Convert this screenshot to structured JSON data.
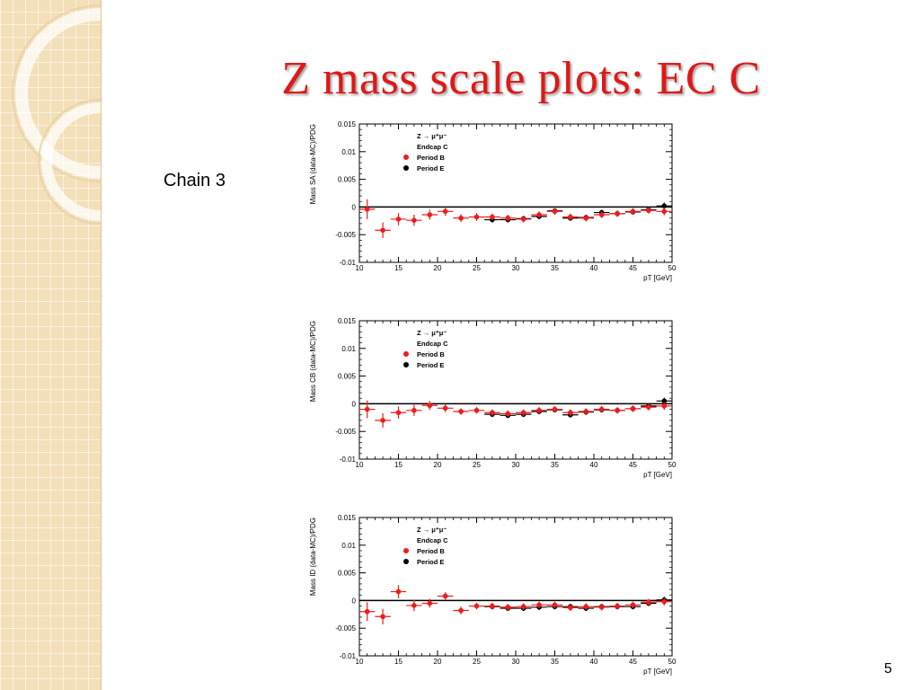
{
  "slide": {
    "title": "Z mass scale plots: EC C",
    "chain_label": "Chain 3",
    "page_number": "5"
  },
  "colors": {
    "title": "#e01818",
    "period_b": "#ee1c1c",
    "period_e": "#000000",
    "sidebar": "#f3dfb8"
  },
  "chart_data": [
    {
      "type": "scatter",
      "ylabel": "Mass SA (data-MC)/PDG",
      "xlabel": "pT [GeV]",
      "xlim": [
        10,
        50
      ],
      "ylim": [
        -0.01,
        0.015
      ],
      "xticks": [
        "10",
        "15",
        "20",
        "25",
        "30",
        "35",
        "40",
        "45",
        "50"
      ],
      "yticks": [
        "0.015",
        "0.01",
        "0.005",
        "0",
        "-0.005",
        "-0.01"
      ],
      "legend": {
        "process": "Z → μ⁺μ⁻",
        "region": "Endcap C",
        "position": "top-left"
      },
      "series": [
        {
          "name": "Period B",
          "x": [
            11,
            13,
            15,
            17,
            19,
            21,
            23,
            25,
            27,
            29,
            31,
            33,
            35,
            37,
            39,
            41,
            43,
            45,
            47,
            49
          ],
          "y": [
            -0.0004,
            -0.0042,
            -0.0022,
            -0.0024,
            -0.0014,
            -0.0008,
            -0.002,
            -0.0018,
            -0.0018,
            -0.002,
            -0.0022,
            -0.0014,
            -0.0008,
            -0.0018,
            -0.002,
            -0.0014,
            -0.0012,
            -0.0008,
            -0.0006,
            -0.0008
          ],
          "yerr": [
            0.0018,
            0.0014,
            0.0011,
            0.001,
            0.0009,
            0.0008,
            0.0007,
            0.0007,
            0.0006,
            0.0006,
            0.0006,
            0.0006,
            0.0006,
            0.0006,
            0.0006,
            0.0006,
            0.0006,
            0.0006,
            0.0006,
            0.0007
          ]
        },
        {
          "name": "Period E",
          "x": [
            27,
            29,
            31,
            33,
            35,
            37,
            39,
            41,
            43,
            45,
            47,
            49
          ],
          "y": [
            -0.0023,
            -0.0023,
            -0.0021,
            -0.0017,
            -0.0007,
            -0.002,
            -0.0019,
            -0.001,
            -0.0012,
            -0.0009,
            -0.0005,
            0.0002
          ],
          "yerr": [
            0.0005,
            0.0005,
            0.0005,
            0.0005,
            0.0005,
            0.0005,
            0.0005,
            0.0005,
            0.0005,
            0.0005,
            0.0005,
            0.0006
          ]
        }
      ]
    },
    {
      "type": "scatter",
      "ylabel": "Mass CB (data-MC)/PDG",
      "xlabel": "pT [GeV]",
      "xlim": [
        10,
        50
      ],
      "ylim": [
        -0.01,
        0.015
      ],
      "xticks": [
        "10",
        "15",
        "20",
        "25",
        "30",
        "35",
        "40",
        "45",
        "50"
      ],
      "yticks": [
        "0.015",
        "0.01",
        "0.005",
        "0",
        "-0.005",
        "-0.01"
      ],
      "legend": {
        "process": "Z → μ⁺μ⁻",
        "region": "Endcap C",
        "position": "top-left"
      },
      "series": [
        {
          "name": "Period B",
          "x": [
            11,
            13,
            15,
            17,
            19,
            21,
            23,
            25,
            27,
            29,
            31,
            33,
            35,
            37,
            39,
            41,
            43,
            45,
            47,
            49
          ],
          "y": [
            -0.001,
            -0.003,
            -0.0016,
            -0.0012,
            -0.0003,
            -0.0008,
            -0.0014,
            -0.0012,
            -0.0016,
            -0.0018,
            -0.0016,
            -0.0012,
            -0.001,
            -0.0016,
            -0.0014,
            -0.001,
            -0.0012,
            -0.0009,
            -0.0006,
            -0.0004
          ],
          "yerr": [
            0.0016,
            0.0013,
            0.0011,
            0.001,
            0.0008,
            0.0007,
            0.0006,
            0.0006,
            0.0006,
            0.0006,
            0.0006,
            0.0006,
            0.0006,
            0.0006,
            0.0006,
            0.0006,
            0.0006,
            0.0006,
            0.0006,
            0.0007
          ]
        },
        {
          "name": "Period E",
          "x": [
            27,
            29,
            31,
            33,
            35,
            37,
            39,
            41,
            43,
            45,
            47,
            49
          ],
          "y": [
            -0.0019,
            -0.0021,
            -0.0019,
            -0.0014,
            -0.0011,
            -0.002,
            -0.0015,
            -0.0011,
            -0.0012,
            -0.0009,
            -0.0004,
            0.0005
          ],
          "yerr": [
            0.0005,
            0.0005,
            0.0005,
            0.0005,
            0.0005,
            0.0005,
            0.0005,
            0.0005,
            0.0005,
            0.0005,
            0.0005,
            0.0006
          ]
        }
      ]
    },
    {
      "type": "scatter",
      "ylabel": "Mass ID (data-MC)/PDG",
      "xlabel": "pT [GeV]",
      "xlim": [
        10,
        50
      ],
      "ylim": [
        -0.01,
        0.015
      ],
      "xticks": [
        "10",
        "15",
        "20",
        "25",
        "30",
        "35",
        "40",
        "45",
        "50"
      ],
      "yticks": [
        "0.015",
        "0.01",
        "0.005",
        "0",
        "-0.005",
        "-0.01"
      ],
      "legend": {
        "process": "Z → μ⁺μ⁻",
        "region": "Endcap C",
        "position": "top-left"
      },
      "series": [
        {
          "name": "Period B",
          "x": [
            11,
            13,
            15,
            17,
            19,
            21,
            23,
            25,
            27,
            29,
            31,
            33,
            35,
            37,
            39,
            41,
            43,
            45,
            47,
            49
          ],
          "y": [
            -0.002,
            -0.0029,
            0.0016,
            -0.0009,
            -0.0005,
            0.0008,
            -0.0018,
            -0.001,
            -0.001,
            -0.0012,
            -0.0011,
            -0.0008,
            -0.0008,
            -0.0013,
            -0.0011,
            -0.0012,
            -0.001,
            -0.0008,
            -0.0003,
            -0.0002
          ],
          "yerr": [
            0.0017,
            0.0014,
            0.0012,
            0.001,
            0.0008,
            0.0007,
            0.0007,
            0.0006,
            0.0006,
            0.0006,
            0.0006,
            0.0006,
            0.0006,
            0.0006,
            0.0006,
            0.0006,
            0.0006,
            0.0006,
            0.0006,
            0.0007
          ]
        },
        {
          "name": "Period E",
          "x": [
            27,
            29,
            31,
            33,
            35,
            37,
            39,
            41,
            43,
            45,
            47,
            49
          ],
          "y": [
            -0.0011,
            -0.0014,
            -0.0014,
            -0.0012,
            -0.0011,
            -0.0011,
            -0.0014,
            -0.0011,
            -0.0011,
            -0.0011,
            -0.0005,
            0.0001
          ],
          "yerr": [
            0.0005,
            0.0005,
            0.0005,
            0.0005,
            0.0005,
            0.0005,
            0.0005,
            0.0005,
            0.0005,
            0.0005,
            0.0005,
            0.0006
          ]
        }
      ]
    }
  ]
}
